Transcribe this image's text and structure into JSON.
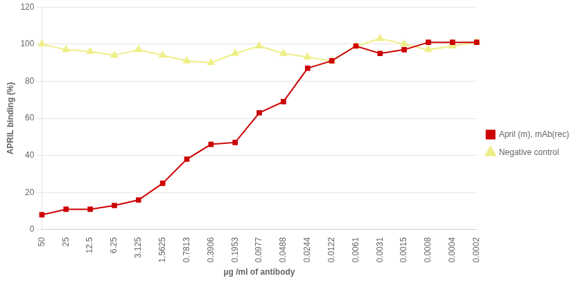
{
  "chart_data": {
    "type": "line",
    "xlabel": "µg /ml of antibody",
    "ylabel": "APRIL binding (%)",
    "categories": [
      "50",
      "25",
      "12.5",
      "6.25",
      "3.125",
      "1.5625",
      "0.7813",
      "0.3906",
      "0.1953",
      "0.0977",
      "0.0488",
      "0.0244",
      "0.0122",
      "0.0061",
      "0.0031",
      "0.0015",
      "0.0008",
      "0.0004",
      "0.0002"
    ],
    "series": [
      {
        "name": "April (m), mAb(rec)",
        "color": "#CC0000",
        "marker": "square",
        "values": [
          8,
          11,
          11,
          13,
          16,
          25,
          38,
          46,
          47,
          63,
          69,
          87,
          91,
          99,
          95,
          97,
          101,
          101,
          101
        ]
      },
      {
        "name": "Negative control",
        "color": "#EEEE88",
        "marker": "triangle",
        "values": [
          100,
          97,
          96,
          94,
          97,
          94,
          91,
          90,
          95,
          99,
          95,
          93,
          91,
          99,
          103,
          100,
          97,
          99,
          101
        ]
      }
    ],
    "ylim": [
      0,
      120
    ],
    "yticks": [
      0,
      20,
      40,
      60,
      80,
      100,
      120
    ],
    "grid": "y",
    "legend": "right"
  }
}
